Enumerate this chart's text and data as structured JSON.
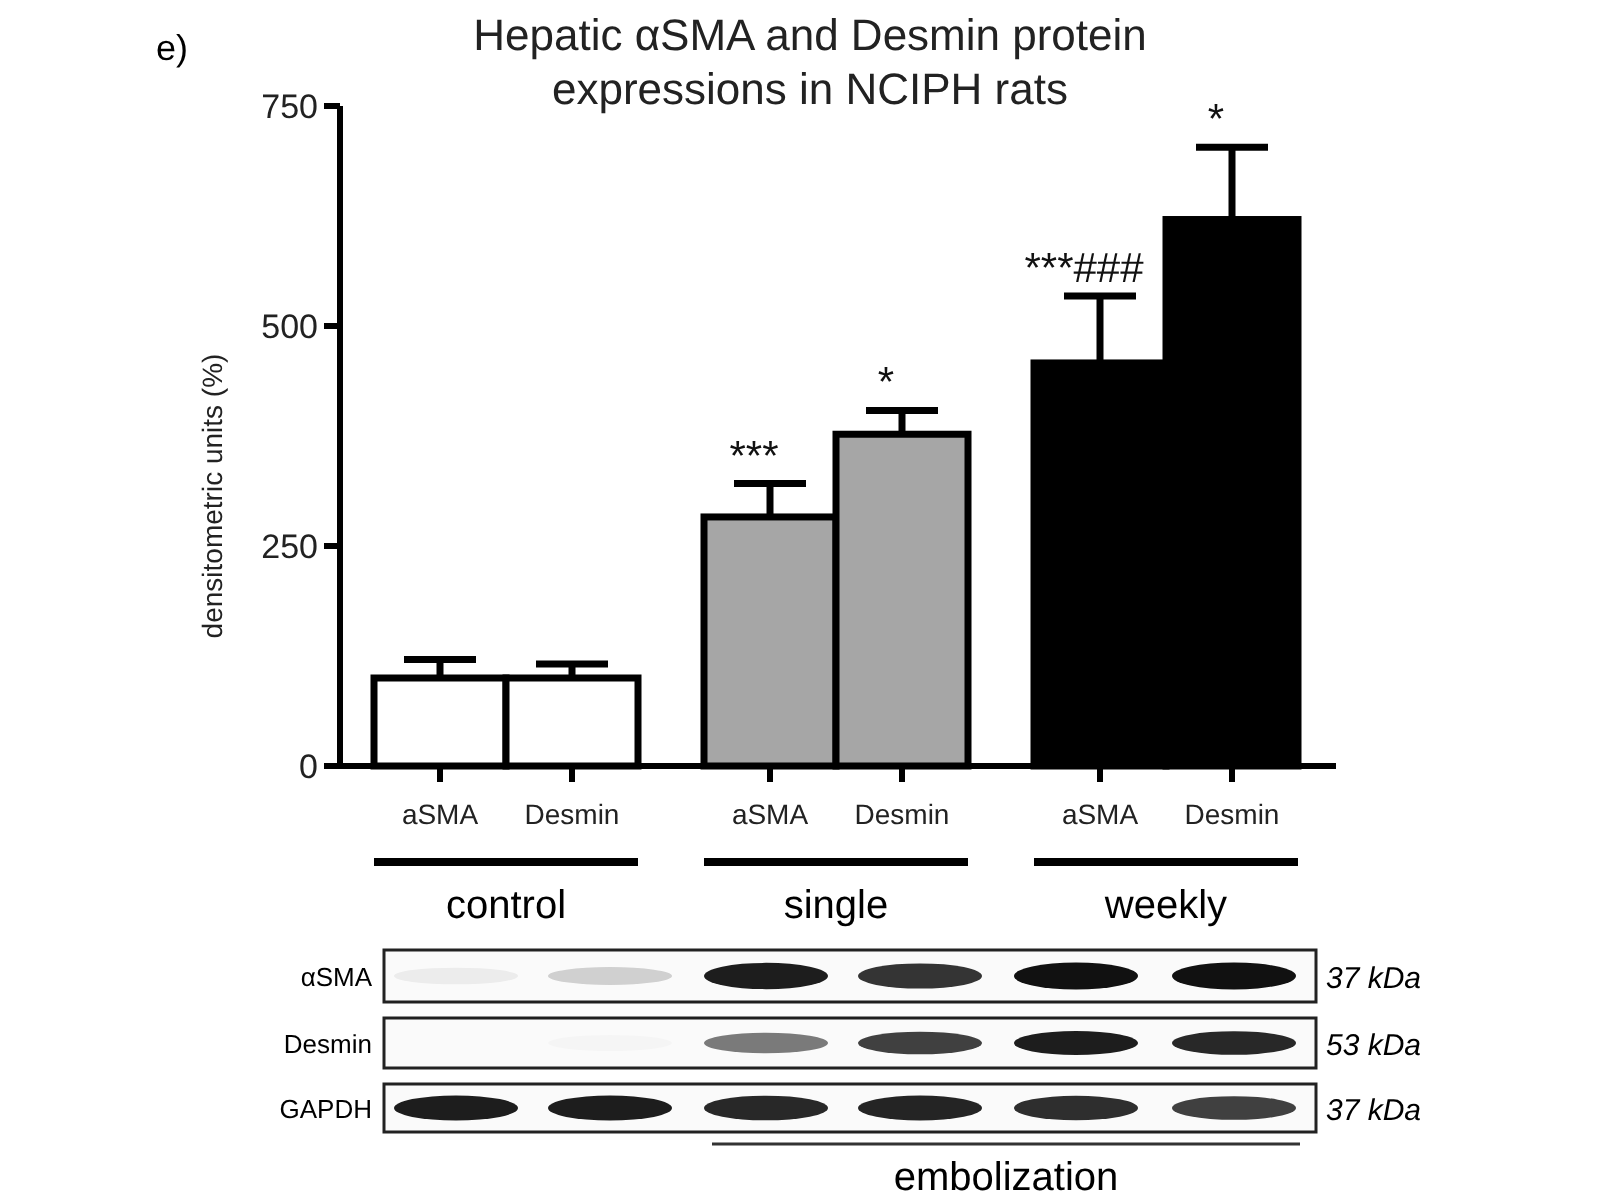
{
  "chart_data": {
    "type": "bar",
    "title": "Hepatic αSMA and Desmin protein\nexpressions in NCIPH rats",
    "ylabel": "densitometric units (%)",
    "categories": [
      "aSMA",
      "Desmin",
      "aSMA",
      "Desmin",
      "aSMA",
      "Desmin"
    ],
    "values": [
      100,
      100,
      283,
      377,
      458,
      621
    ],
    "colors": [
      "#ffffff",
      "#ffffff",
      "#a6a6a6",
      "#a6a6a6",
      "#000000",
      "#000000"
    ],
    "errors": [
      [
        100,
        121
      ],
      [
        100,
        116
      ],
      [
        283,
        321
      ],
      [
        377,
        404
      ],
      [
        458,
        534
      ],
      [
        621,
        703
      ]
    ],
    "value_labels": [
      null,
      null,
      "***",
      "*",
      "***###",
      "*"
    ],
    "ylim": [
      0,
      750
    ],
    "yticks": [
      0,
      250,
      500,
      750
    ],
    "annotations": [
      "e)",
      "control",
      "single",
      "weekly",
      "αSMA",
      "Desmin",
      "GAPDH",
      "37 kDa",
      "53 kDa",
      "37 kDa",
      "embolization"
    ]
  }
}
